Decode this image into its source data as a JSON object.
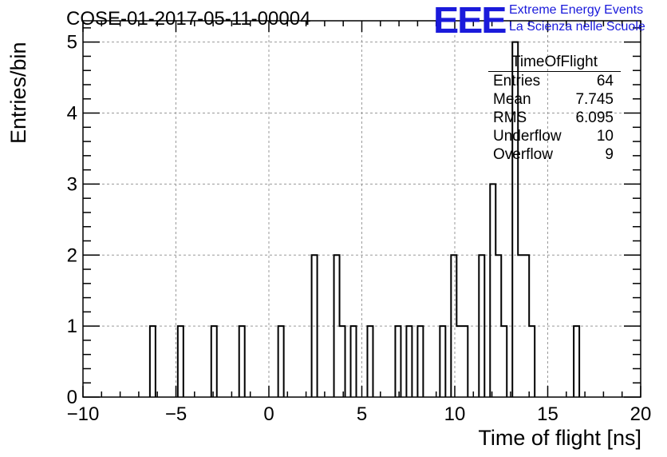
{
  "header": {
    "title": "COSE-01-2017-05-11-00004",
    "logo_text": "EEE",
    "logo_line1": "Extreme Energy Events",
    "logo_line2": "La Scienza nelle Scuole",
    "logo_color": "#1a1adb"
  },
  "stats_box": {
    "title": "TimeOfFlight",
    "rows": [
      {
        "label": "Entries",
        "value": "64"
      },
      {
        "label": "Mean",
        "value": "7.745"
      },
      {
        "label": "RMS",
        "value": "6.095"
      },
      {
        "label": "Underflow",
        "value": "10"
      },
      {
        "label": "Overflow",
        "value": "9"
      }
    ]
  },
  "chart_data": {
    "type": "bar",
    "title": "COSE-01-2017-05-11-00004",
    "xlabel": "Time of flight [ns]",
    "ylabel": "Entries/bin",
    "xlim": [
      -10,
      20
    ],
    "ylim": [
      0,
      5.3
    ],
    "xticks": [
      -10,
      -5,
      0,
      5,
      10,
      15,
      20
    ],
    "xtick_labels": [
      "−10",
      "−5",
      "0",
      "5",
      "10",
      "15",
      "20"
    ],
    "yticks": [
      0,
      1,
      2,
      3,
      4,
      5
    ],
    "ytick_labels": [
      "0",
      "1",
      "2",
      "3",
      "4",
      "5"
    ],
    "grid": true,
    "histogram": true,
    "bin_width": 0.3,
    "bins": [
      {
        "x0": -6.4,
        "value": 1
      },
      {
        "x0": -4.9,
        "value": 1
      },
      {
        "x0": -3.1,
        "value": 1
      },
      {
        "x0": -1.6,
        "value": 1
      },
      {
        "x0": 0.5,
        "value": 1
      },
      {
        "x0": 2.3,
        "value": 2
      },
      {
        "x0": 3.5,
        "value": 2
      },
      {
        "x0": 3.8,
        "value": 1
      },
      {
        "x0": 4.4,
        "value": 1
      },
      {
        "x0": 5.3,
        "value": 1
      },
      {
        "x0": 6.8,
        "value": 1
      },
      {
        "x0": 7.4,
        "value": 1
      },
      {
        "x0": 8.0,
        "value": 1
      },
      {
        "x0": 9.2,
        "value": 1
      },
      {
        "x0": 9.8,
        "value": 2
      },
      {
        "x0": 10.1,
        "value": 1
      },
      {
        "x0": 10.4,
        "value": 1
      },
      {
        "x0": 11.3,
        "value": 2
      },
      {
        "x0": 11.9,
        "value": 3
      },
      {
        "x0": 12.2,
        "value": 2
      },
      {
        "x0": 12.5,
        "value": 1
      },
      {
        "x0": 13.1,
        "value": 5
      },
      {
        "x0": 13.4,
        "value": 2
      },
      {
        "x0": 13.7,
        "value": 2
      },
      {
        "x0": 14.0,
        "value": 1
      },
      {
        "x0": 16.4,
        "value": 1
      }
    ]
  }
}
